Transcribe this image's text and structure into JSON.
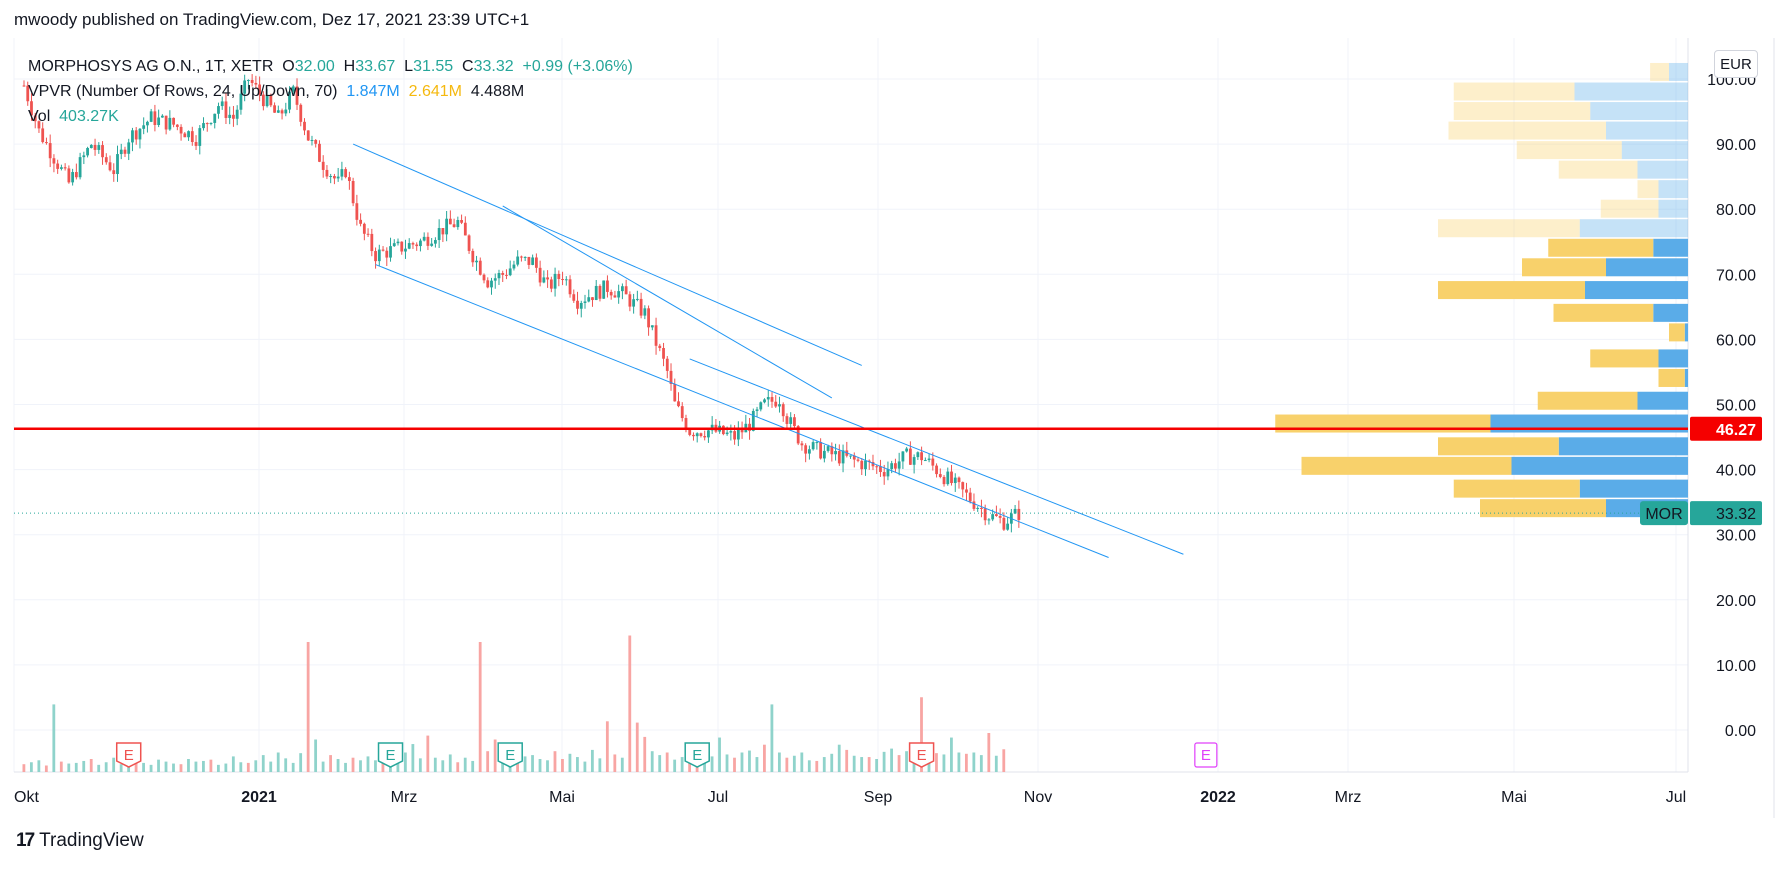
{
  "header": {
    "published": "mwoody published on TradingView.com, Dez 17, 2021 23:39 UTC+1"
  },
  "legend": {
    "symbol": "MORPHOSYS AG O.N., 1T, XETR",
    "o_label": "O",
    "o_value": "32.00",
    "h_label": "H",
    "h_value": "33.67",
    "l_label": "L",
    "l_value": "31.55",
    "c_label": "C",
    "c_value": "33.32",
    "change": "+0.99 (+3.06%)",
    "vpvr_label": "VPVR (Number Of Rows, 24, Up/Down, 70)",
    "vpvr_up": "1.847M",
    "vpvr_down": "2.641M",
    "vpvr_total": "4.488M",
    "vol_label": "Vol",
    "vol_value": "403.27K"
  },
  "currency": "EUR",
  "footer": {
    "brand": "TradingView",
    "logo": "17"
  },
  "colors": {
    "up": "#26a69a",
    "down": "#ef5350",
    "line": "#2196f3",
    "hline": "#f50000",
    "vp_up": "#5aace8",
    "vp_down": "#f8d16b"
  },
  "chart_data": {
    "type": "candlestick",
    "title": "MORPHOSYS AG O.N., 1T, XETR",
    "y_axis": {
      "ticks": [
        "100.00",
        "90.00",
        "80.00",
        "70.00",
        "60.00",
        "50.00",
        "40.00",
        "30.00",
        "20.00",
        "10.00",
        "0.00"
      ],
      "range": [
        -6,
        105
      ]
    },
    "x_axis": {
      "ticks": [
        "Okt",
        "2021",
        "Mrz",
        "Mai",
        "Jul",
        "Sep",
        "Nov",
        "2022",
        "Mrz",
        "Mai",
        "Jul"
      ]
    },
    "price_path": [
      [
        0,
        99
      ],
      [
        2,
        92
      ],
      [
        6,
        84
      ],
      [
        9,
        90
      ],
      [
        12,
        86
      ],
      [
        14,
        91
      ],
      [
        17,
        94
      ],
      [
        20,
        93
      ],
      [
        23,
        91
      ],
      [
        26,
        96
      ],
      [
        28,
        94
      ],
      [
        30,
        100
      ],
      [
        32,
        97
      ],
      [
        34,
        94
      ],
      [
        36,
        98
      ],
      [
        38,
        91
      ],
      [
        40,
        87
      ],
      [
        42,
        84
      ],
      [
        43,
        86
      ],
      [
        45,
        77
      ],
      [
        47,
        73
      ],
      [
        50,
        74
      ],
      [
        53,
        75
      ],
      [
        56,
        77
      ],
      [
        58,
        78
      ],
      [
        60,
        73
      ],
      [
        62,
        69
      ],
      [
        64,
        70
      ],
      [
        66,
        72
      ],
      [
        68,
        72
      ],
      [
        70,
        68
      ],
      [
        72,
        70
      ],
      [
        74,
        66
      ],
      [
        76,
        67
      ],
      [
        78,
        68
      ],
      [
        80,
        67
      ],
      [
        83,
        64
      ],
      [
        84,
        61
      ],
      [
        85,
        58
      ],
      [
        86,
        55
      ],
      [
        87,
        50
      ],
      [
        89,
        46
      ],
      [
        92,
        46
      ],
      [
        95,
        45
      ],
      [
        97,
        47
      ],
      [
        99,
        50
      ],
      [
        101,
        51
      ],
      [
        102,
        48
      ],
      [
        104,
        44
      ],
      [
        106,
        43
      ],
      [
        109,
        42
      ],
      [
        112,
        41
      ],
      [
        115,
        40
      ],
      [
        118,
        42
      ],
      [
        120,
        42
      ],
      [
        122,
        40
      ],
      [
        125,
        37
      ],
      [
        127,
        35
      ],
      [
        129,
        33
      ],
      [
        131,
        32
      ],
      [
        133,
        33.3
      ]
    ],
    "horizontal_line": {
      "value": 46.27,
      "label": "46.27"
    },
    "last_price": {
      "value": 33.32,
      "label": "33.32",
      "symbol": "MOR"
    },
    "trendlines": [
      {
        "from": [
          44,
          90
        ],
        "to": [
          112,
          56
        ]
      },
      {
        "from": [
          47,
          71.5
        ],
        "to": [
          145,
          26.5
        ]
      },
      {
        "from": [
          89,
          57
        ],
        "to": [
          155,
          27
        ]
      },
      {
        "from": [
          64,
          80.5
        ],
        "to": [
          108,
          51
        ]
      }
    ],
    "earnings": [
      {
        "label": "E",
        "type": "down",
        "t": 14
      },
      {
        "label": "E",
        "type": "up",
        "t": 49
      },
      {
        "label": "E",
        "type": "up",
        "t": 65
      },
      {
        "label": "E",
        "type": "up",
        "t": 90
      },
      {
        "label": "E",
        "type": "down",
        "t": 120
      },
      {
        "label": "E",
        "type": "future",
        "t": 158
      }
    ],
    "volume": {
      "values": [
        1.2,
        1.5,
        1.8,
        1.0,
        10.4,
        1.6,
        1.3,
        1.4,
        1.7,
        2.0,
        1.1,
        1.5,
        2.2,
        1.2,
        1.0,
        2.5,
        1.4,
        1.1,
        1.9,
        1.6,
        1.3,
        1.2,
        2.0,
        1.6,
        1.7,
        1.9,
        1.1,
        1.3,
        2.4,
        1.5,
        1.4,
        1.8,
        2.6,
        1.6,
        3.0,
        2.1,
        1.4,
        2.9,
        20.0,
        5.0,
        1.6,
        2.6,
        2.0,
        1.4,
        2.2,
        1.8,
        2.4,
        1.8,
        1.6,
        3.6,
        1.7,
        3.0,
        4.3,
        2.1,
        5.6,
        2.2,
        1.8,
        2.7,
        1.5,
        2.2,
        1.7,
        20.0,
        3.2,
        5.0,
        4.4,
        3.4,
        2.8,
        2.4,
        2.6,
        2.0,
        1.8,
        3.2,
        2.0,
        2.8,
        2.3,
        1.6,
        3.4,
        2.1,
        7.8,
        2.7,
        2.2,
        21.0,
        7.6,
        5.4,
        3.2,
        2.6,
        3.0,
        1.9,
        2.3,
        4.5,
        2.0,
        3.3,
        2.4,
        5.3,
        2.7,
        2.2,
        3.0,
        3.3,
        2.3,
        4.2,
        10.4,
        3.0,
        2.2,
        2.5,
        3.0,
        1.8,
        1.7,
        2.3,
        2.8,
        4.2,
        3.4,
        2.5,
        2.3,
        2.3,
        2.0,
        3.1,
        3.6,
        2.6,
        3.2,
        4.4,
        11.5,
        3.1,
        2.9,
        2.7,
        5.3,
        3.0,
        2.8,
        3.0,
        2.6,
        6.0,
        2.5,
        3.5
      ],
      "down_marks": [
        0,
        3,
        5,
        9,
        15,
        21,
        25,
        30,
        38,
        41,
        44,
        48,
        54,
        58,
        61,
        62,
        63,
        66,
        71,
        72,
        78,
        79,
        81,
        82,
        83,
        86,
        89,
        90,
        95,
        99,
        102,
        106,
        110,
        113,
        117,
        120,
        122,
        126,
        129,
        131
      ]
    },
    "volume_profile": [
      {
        "price": 101,
        "up": 2.0,
        "down": 1.8
      },
      {
        "price": 98,
        "up": 11.0,
        "down": 11.5
      },
      {
        "price": 95,
        "up": 9.5,
        "down": 13.0
      },
      {
        "price": 92,
        "up": 8.0,
        "down": 15.0
      },
      {
        "price": 89,
        "up": 6.5,
        "down": 10.0
      },
      {
        "price": 86,
        "up": 5.0,
        "down": 7.5
      },
      {
        "price": 83,
        "up": 3.0,
        "down": 2.0
      },
      {
        "price": 80,
        "up": 3.0,
        "down": 5.5
      },
      {
        "price": 77,
        "up": 10.5,
        "down": 13.5
      },
      {
        "price": 74,
        "up": 3.5,
        "down": 10.0
      },
      {
        "price": 71,
        "up": 8.0,
        "down": 8.0
      },
      {
        "price": 67.5,
        "up": 10.0,
        "down": 14.0
      },
      {
        "price": 64,
        "up": 3.5,
        "down": 9.5
      },
      {
        "price": 61,
        "up": 0.5,
        "down": 1.5
      },
      {
        "price": 57,
        "up": 3.0,
        "down": 6.5
      },
      {
        "price": 54,
        "up": 0.5,
        "down": 2.5
      },
      {
        "price": 50.5,
        "up": 5.0,
        "down": 9.5
      },
      {
        "price": 47,
        "up": 19.0,
        "down": 20.5
      },
      {
        "price": 43.5,
        "up": 12.5,
        "down": 11.5
      },
      {
        "price": 40.5,
        "up": 17.0,
        "down": 20.0
      },
      {
        "price": 37,
        "up": 10.5,
        "down": 12.0
      },
      {
        "price": 34,
        "up": 8.0,
        "down": 12.0
      }
    ]
  }
}
